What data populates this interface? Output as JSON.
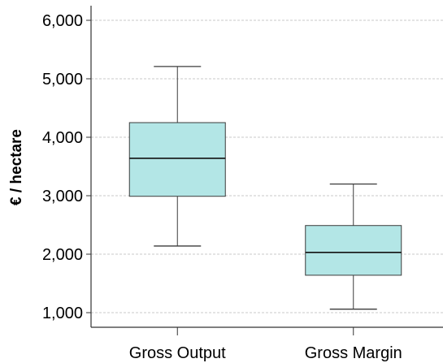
{
  "chart_data": {
    "type": "boxplot",
    "title": "",
    "xlabel": "",
    "ylabel": "€ / hectare",
    "ylim": [
      750,
      6250
    ],
    "yticks": [
      1000,
      2000,
      3000,
      4000,
      5000,
      6000
    ],
    "ytick_labels": [
      "1,000",
      "2,000",
      "3,000",
      "4,000",
      "5,000",
      "6,000"
    ],
    "grid": true,
    "colors": {
      "box_fill": "#b3e6e6",
      "box_stroke": "#3b3b3b",
      "grid": "#c8c8c8",
      "axis": "#333333"
    },
    "categories": [
      "Gross Output",
      "Gross Margin"
    ],
    "boxes": [
      {
        "category": "Gross Output",
        "whisker_low": 2140,
        "q1": 2990,
        "median": 3640,
        "q3": 4250,
        "whisker_high": 5210
      },
      {
        "category": "Gross Margin",
        "whisker_low": 1060,
        "q1": 1640,
        "median": 2030,
        "q3": 2490,
        "whisker_high": 3200
      }
    ]
  }
}
